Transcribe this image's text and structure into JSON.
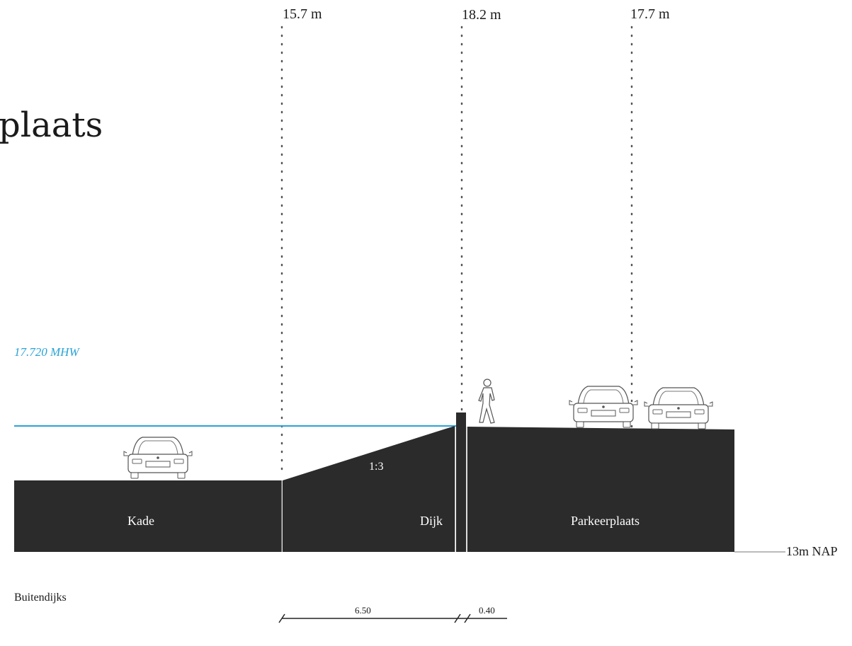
{
  "colors": {
    "ground": "#2b2b2b",
    "water": "#29a3d6",
    "line": "#222222",
    "dots": "#555555",
    "white": "#ffffff"
  },
  "title_fragment": "plaats",
  "levels": {
    "a": "15.7 m",
    "b": "18.2 m",
    "c": "17.7 m"
  },
  "water_label": "17.720 MHW",
  "zones": {
    "kade": "Kade",
    "dijk": "Dijk",
    "parkeerplaats": "Parkeerplaats"
  },
  "slope": "1:3",
  "nap_label": "13m NAP",
  "side_label": "Buitendijks",
  "dimensions": {
    "slope_width": "6.50",
    "wall_width": "0.40"
  },
  "icons": [
    "car-icon",
    "person-icon"
  ]
}
